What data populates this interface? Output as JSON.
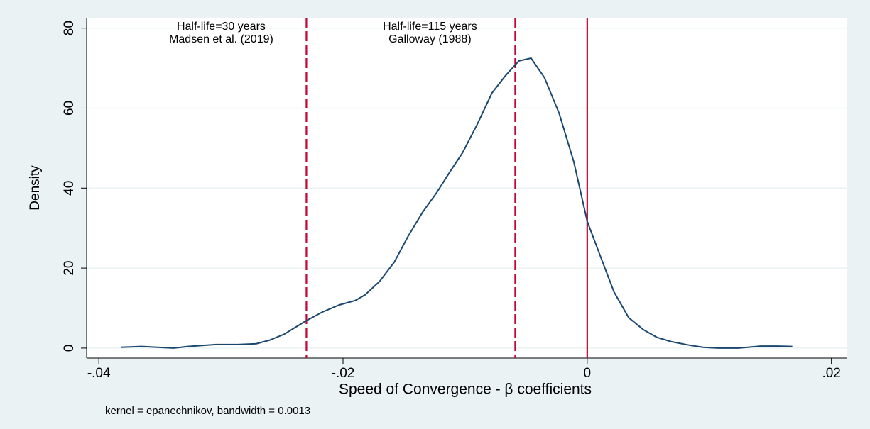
{
  "chart_data": {
    "type": "line",
    "xlabel": "Speed of Convergence - β coefficients",
    "ylabel": "Density",
    "note": "kernel = epanechnikov, bandwidth = 0.0013",
    "x": [
      -0.0382,
      -0.0365,
      -0.0339,
      -0.0327,
      -0.0304,
      -0.0286,
      -0.0271,
      -0.026,
      -0.0248,
      -0.0231,
      -0.0217,
      -0.0203,
      -0.019,
      -0.0182,
      -0.017,
      -0.0158,
      -0.0147,
      -0.0135,
      -0.0123,
      -0.0112,
      -0.0102,
      -0.009,
      -0.0078,
      -0.0067,
      -0.0056,
      -0.0046,
      -0.0035,
      -0.0023,
      -0.0011,
      0,
      0.0012,
      0.0022,
      0.0034,
      0.0046,
      0.0057,
      0.0069,
      0.0084,
      0.0095,
      0.0107,
      0.0124,
      0.0142,
      0.0156,
      0.0168
    ],
    "series": [
      {
        "color": "#1a476f",
        "values": [
          0.2,
          0.4,
          0,
          0.4,
          0.9,
          0.9,
          1.1,
          2.0,
          3.5,
          6.7,
          9,
          10.8,
          11.9,
          13.3,
          16.7,
          21.5,
          27.8,
          33.9,
          39,
          44.3,
          48.9,
          56,
          63.8,
          68.1,
          71.8,
          72.5,
          67.6,
          58.7,
          46.6,
          31.7,
          22,
          14,
          7.6,
          4.6,
          2.7,
          1.6,
          0.7,
          0.2,
          0,
          0,
          0.5,
          0.5,
          0.4
        ]
      }
    ],
    "xlim": [
      -0.041,
      0.0213
    ],
    "ylim": [
      -2.5,
      82.6
    ],
    "xticks": [
      {
        "value": -0.04,
        "label": "-.04"
      },
      {
        "value": -0.02,
        "label": "-.02"
      },
      0,
      {
        "value": 0.02,
        "label": ".02"
      }
    ],
    "yticks": [
      0,
      20,
      40,
      60,
      80
    ],
    "grid": true,
    "reference_lines": [
      {
        "x": -0.023,
        "style": "dashed",
        "color": "#c10534",
        "label": [
          "Half-life=30 years",
          "Madsen et al. (2019)"
        ]
      },
      {
        "x": -0.0059,
        "style": "dashed",
        "color": "#c10534",
        "label": [
          "Half-life=115 years",
          "Galloway (1988)"
        ]
      },
      {
        "x": 0,
        "style": "solid",
        "color": "#c10534"
      }
    ]
  }
}
